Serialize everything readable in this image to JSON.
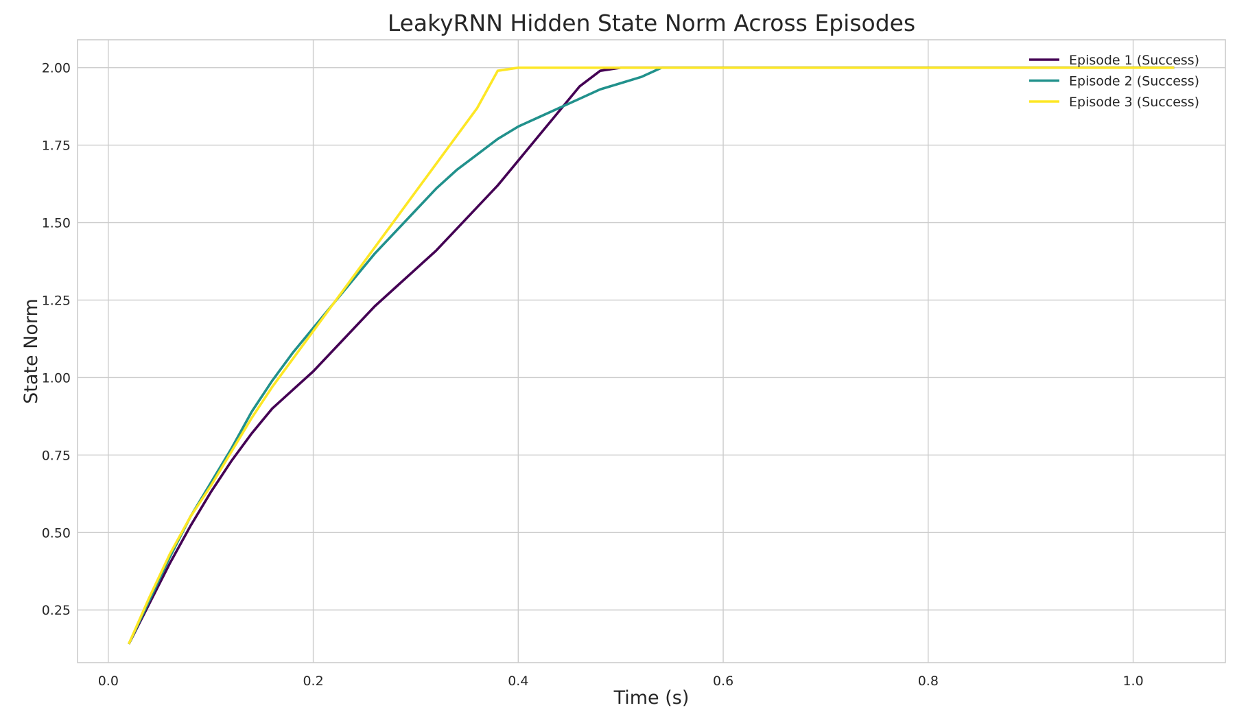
{
  "chart_data": {
    "type": "line",
    "title": "LeakyRNN Hidden State Norm Across Episodes",
    "xlabel": "Time (s)",
    "ylabel": "State Norm",
    "xlim": [
      -0.03,
      1.09
    ],
    "ylim": [
      0.08,
      2.09
    ],
    "xticks": [
      0.0,
      0.2,
      0.4,
      0.6,
      0.8,
      1.0
    ],
    "xtick_labels": [
      "0.0",
      "0.2",
      "0.4",
      "0.6",
      "0.8",
      "1.0"
    ],
    "yticks": [
      0.25,
      0.5,
      0.75,
      1.0,
      1.25,
      1.5,
      1.75,
      2.0
    ],
    "ytick_labels": [
      "0.25",
      "0.50",
      "0.75",
      "1.00",
      "1.25",
      "1.50",
      "1.75",
      "2.00"
    ],
    "grid": true,
    "legend_position": "top-right",
    "series": [
      {
        "name": "Episode 1 (Success)",
        "color": "#440154",
        "x": [
          0.02,
          0.04,
          0.06,
          0.08,
          0.1,
          0.12,
          0.14,
          0.16,
          0.18,
          0.2,
          0.22,
          0.24,
          0.26,
          0.28,
          0.3,
          0.32,
          0.34,
          0.36,
          0.38,
          0.4,
          0.42,
          0.44,
          0.46,
          0.48,
          0.5,
          0.52,
          0.54,
          0.56,
          0.58,
          0.6,
          0.62,
          0.64,
          0.66,
          0.68,
          0.7,
          0.72,
          0.74,
          0.76,
          0.78,
          0.8,
          0.82,
          0.84,
          0.86,
          0.88,
          0.9,
          0.92,
          0.94,
          0.96,
          0.98,
          1.0,
          1.02,
          1.04
        ],
        "y": [
          0.14,
          0.27,
          0.4,
          0.52,
          0.63,
          0.73,
          0.82,
          0.9,
          0.96,
          1.02,
          1.09,
          1.16,
          1.23,
          1.29,
          1.35,
          1.41,
          1.48,
          1.55,
          1.62,
          1.7,
          1.78,
          1.86,
          1.94,
          1.99,
          2.0,
          2.0,
          2.0,
          2.0,
          2.0,
          2.0,
          2.0,
          2.0,
          2.0,
          2.0,
          2.0,
          2.0,
          2.0,
          2.0,
          2.0,
          2.0,
          2.0,
          2.0,
          2.0,
          2.0,
          2.0,
          2.0,
          2.0,
          2.0,
          2.0,
          2.0,
          2.0,
          2.0
        ]
      },
      {
        "name": "Episode 2 (Success)",
        "color": "#21918c",
        "x": [
          0.02,
          0.04,
          0.06,
          0.08,
          0.1,
          0.12,
          0.14,
          0.16,
          0.18,
          0.2,
          0.22,
          0.24,
          0.26,
          0.28,
          0.3,
          0.32,
          0.34,
          0.36,
          0.38,
          0.4,
          0.42,
          0.44,
          0.46,
          0.48,
          0.5,
          0.52,
          0.54,
          0.56,
          0.58,
          0.6,
          0.62,
          0.64,
          0.66,
          0.68,
          0.7,
          0.72,
          0.74,
          0.76,
          0.78,
          0.8,
          0.82,
          0.84,
          0.86,
          0.88,
          0.9,
          0.92,
          0.94,
          0.96,
          0.98,
          1.0,
          1.02,
          1.04
        ],
        "y": [
          0.14,
          0.28,
          0.42,
          0.55,
          0.66,
          0.77,
          0.89,
          0.99,
          1.08,
          1.16,
          1.24,
          1.32,
          1.4,
          1.47,
          1.54,
          1.61,
          1.67,
          1.72,
          1.77,
          1.81,
          1.84,
          1.87,
          1.9,
          1.93,
          1.95,
          1.97,
          2.0,
          2.0,
          2.0,
          2.0,
          2.0,
          2.0,
          2.0,
          2.0,
          2.0,
          2.0,
          2.0,
          2.0,
          2.0,
          2.0,
          2.0,
          2.0,
          2.0,
          2.0,
          2.0,
          2.0,
          2.0,
          2.0,
          2.0,
          2.0,
          2.0,
          2.0
        ]
      },
      {
        "name": "Episode 3 (Success)",
        "color": "#fde725",
        "x": [
          0.02,
          0.04,
          0.06,
          0.08,
          0.1,
          0.12,
          0.14,
          0.16,
          0.18,
          0.2,
          0.22,
          0.24,
          0.26,
          0.28,
          0.3,
          0.32,
          0.34,
          0.36,
          0.38,
          0.4,
          0.42,
          0.44,
          0.46,
          0.48,
          0.5,
          0.52,
          0.54,
          0.56,
          0.58,
          0.6,
          0.62,
          0.64,
          0.66,
          0.68,
          0.7,
          0.72,
          0.74,
          0.76,
          0.78,
          0.8,
          0.82,
          0.84,
          0.86,
          0.88,
          0.9,
          0.92,
          0.94,
          0.96,
          0.98,
          1.0,
          1.02,
          1.04
        ],
        "y": [
          0.14,
          0.29,
          0.43,
          0.55,
          0.65,
          0.76,
          0.87,
          0.97,
          1.06,
          1.15,
          1.24,
          1.33,
          1.42,
          1.51,
          1.6,
          1.69,
          1.78,
          1.87,
          1.99,
          2.0,
          2.0,
          2.0,
          2.0,
          2.0,
          2.0,
          2.0,
          2.0,
          2.0,
          2.0,
          2.0,
          2.0,
          2.0,
          2.0,
          2.0,
          2.0,
          2.0,
          2.0,
          2.0,
          2.0,
          2.0,
          2.0,
          2.0,
          2.0,
          2.0,
          2.0,
          2.0,
          2.0,
          2.0,
          2.0,
          2.0,
          2.0,
          2.0
        ]
      }
    ]
  }
}
